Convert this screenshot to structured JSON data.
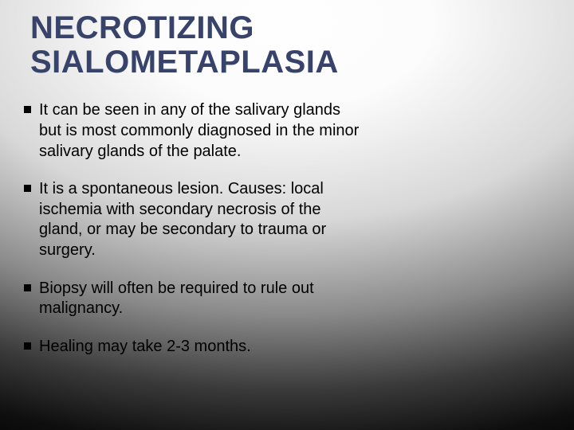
{
  "slide": {
    "title": "NECROTIZING SIALOMETAPLASIA",
    "title_color": "#37436b",
    "title_fontsize": 40,
    "title_fontweight": 700,
    "body_fontsize": 20,
    "body_color": "#000000",
    "bullet_marker_color": "#000000",
    "bullet_marker_size": 9,
    "background_gradient": {
      "type": "radial",
      "center": "50% 5%",
      "stops": [
        {
          "color": "#fefefe",
          "at": "0%"
        },
        {
          "color": "#fcfcfc",
          "at": "18%"
        },
        {
          "color": "#d8d8d8",
          "at": "42%"
        },
        {
          "color": "#8a8a8a",
          "at": "62%"
        },
        {
          "color": "#3a3a3a",
          "at": "78%"
        },
        {
          "color": "#0f0f0f",
          "at": "90%"
        },
        {
          "color": "#000000",
          "at": "100%"
        }
      ]
    },
    "bullets": [
      "It can be seen in any of the salivary glands but is most commonly diagnosed in the minor salivary glands of the palate.",
      "It is a spontaneous lesion. Causes: local ischemia with secondary necrosis of the gland, or may be secondary to trauma or surgery.",
      "Biopsy will often be required to rule out malignancy.",
      "Healing may take 2-3 months."
    ]
  }
}
